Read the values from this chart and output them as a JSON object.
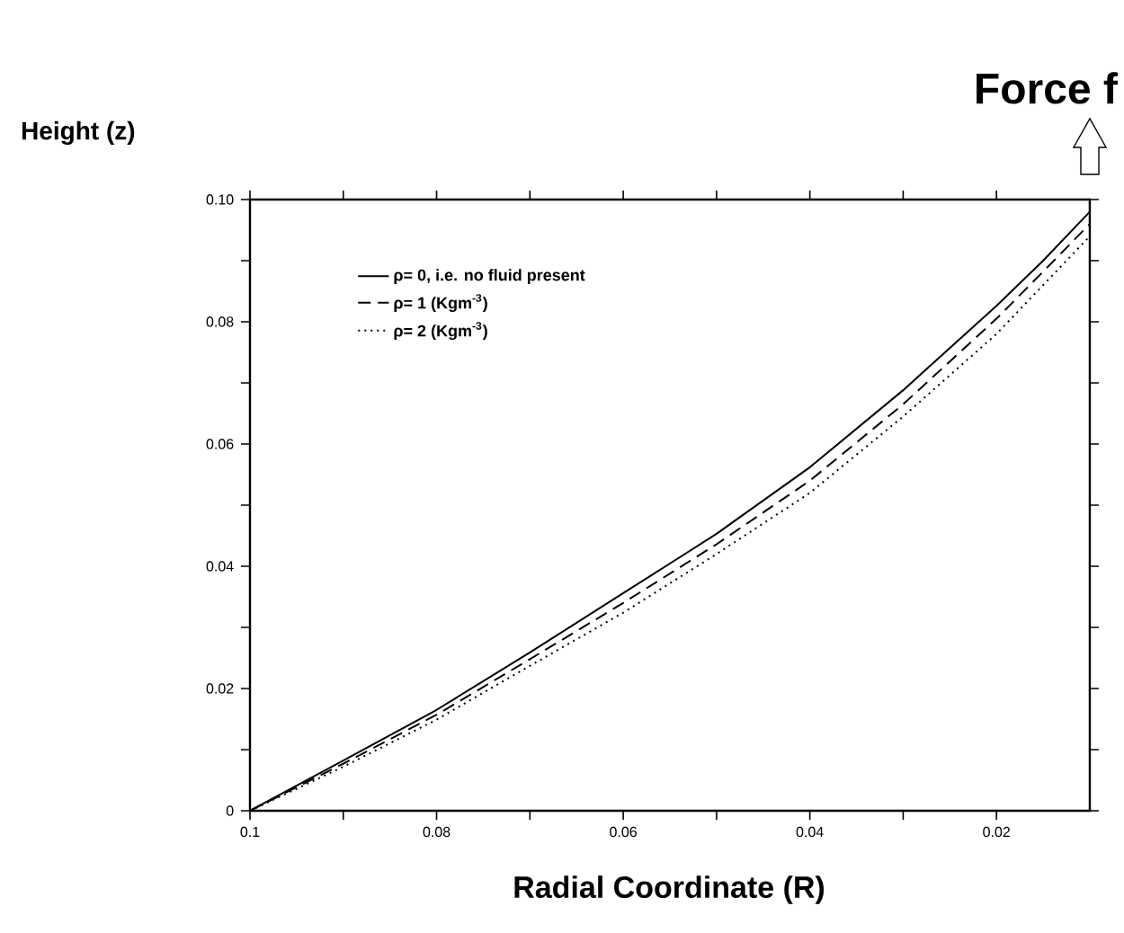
{
  "chart_data": {
    "type": "line",
    "title": "Force f",
    "xlabel": "Radial Coordinate (R)",
    "ylabel": "Height (z)",
    "xlim": [
      0.1,
      0.01
    ],
    "ylim": [
      0,
      0.1
    ],
    "xticks": [
      0.1,
      0.08,
      0.06,
      0.04,
      0.02
    ],
    "yticks": [
      0,
      0.02,
      0.04,
      0.06,
      0.08,
      {
        "value": 0.1,
        "label": "0.10"
      }
    ],
    "x": [
      0.1,
      0.09,
      0.08,
      0.07,
      0.06,
      0.05,
      0.04,
      0.03,
      0.02,
      0.015,
      0.01
    ],
    "legend": "top left",
    "grid": false,
    "series": [
      {
        "name": "ρ= 0, i.e. no fluid present",
        "color": "#000000",
        "line_style": "solid",
        "values": [
          0,
          0.0082,
          0.0165,
          0.0259,
          0.0356,
          0.0453,
          0.0562,
          0.0688,
          0.0826,
          0.09,
          0.098
        ]
      },
      {
        "name": "ρ= 1 (Kgm$^{-3}$)",
        "color": "#000000",
        "line_style": "dashed",
        "values": [
          0,
          0.0077,
          0.0157,
          0.0248,
          0.034,
          0.0436,
          0.054,
          0.0665,
          0.0805,
          0.0882,
          0.096
        ]
      },
      {
        "name": "ρ= 2 (Kgm$^{-3}$)",
        "color": "#000000",
        "line_style": "dotted",
        "values": [
          0,
          0.0072,
          0.0149,
          0.0237,
          0.0324,
          0.042,
          0.052,
          0.0645,
          0.078,
          0.086,
          0.094
        ]
      }
    ]
  }
}
